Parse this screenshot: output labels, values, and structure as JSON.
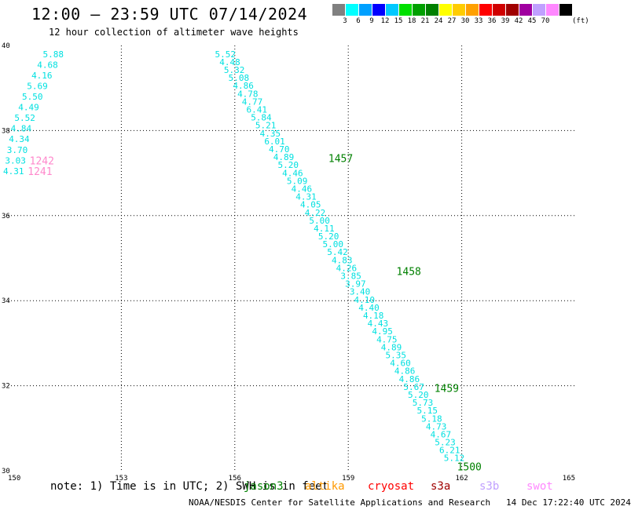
{
  "header": {
    "title": "12:00 – 23:59 UTC 07/14/2024",
    "subtitle": "12 hour collection of altimeter wave heights"
  },
  "legend": {
    "colors": [
      "#808080",
      "#00ffff",
      "#00a0ff",
      "#0000ff",
      "#00c8ff",
      "#00e000",
      "#00a000",
      "#008000",
      "#ffff00",
      "#ffcc00",
      "#ffa000",
      "#ff0000",
      "#d00000",
      "#a00000",
      "#a000a0",
      "#c0a0ff",
      "#ff88ff",
      "#000000"
    ],
    "ticks": [
      "3",
      "6",
      "9",
      "12",
      "15",
      "18",
      "21",
      "24",
      "27",
      "30",
      "33",
      "36",
      "39",
      "42",
      "45",
      "70"
    ],
    "unit": "(ft)"
  },
  "map": {
    "x_ticks": [
      "150",
      "153",
      "156",
      "159",
      "162",
      "165"
    ],
    "y_ticks": [
      "40",
      "38",
      "36",
      "34",
      "32",
      "30"
    ]
  },
  "track_west": {
    "color": "#00e0e0",
    "points": [
      {
        "lon": 151.2,
        "lat": 39.8,
        "h": "5.88"
      },
      {
        "lon": 151.05,
        "lat": 39.55,
        "h": "4.68"
      },
      {
        "lon": 150.9,
        "lat": 39.3,
        "h": "4.16"
      },
      {
        "lon": 150.78,
        "lat": 39.05,
        "h": "5.69"
      },
      {
        "lon": 150.65,
        "lat": 38.8,
        "h": "5.50"
      },
      {
        "lon": 150.55,
        "lat": 38.55,
        "h": "4.49"
      },
      {
        "lon": 150.45,
        "lat": 38.3,
        "h": "5.52"
      },
      {
        "lon": 150.35,
        "lat": 38.05,
        "h": "4.84"
      },
      {
        "lon": 150.3,
        "lat": 37.8,
        "h": "4.34"
      },
      {
        "lon": 150.25,
        "lat": 37.55,
        "h": "3.70"
      },
      {
        "lon": 150.2,
        "lat": 37.3,
        "h": "3.03"
      },
      {
        "lon": 150.15,
        "lat": 37.05,
        "h": "4.31"
      }
    ],
    "times": [
      {
        "lon": 150.9,
        "lat": 37.3,
        "t": "1242",
        "color": "#ff88cc"
      },
      {
        "lon": 150.85,
        "lat": 37.05,
        "t": "1241",
        "color": "#ff88cc"
      }
    ]
  },
  "track_east": {
    "color": "#00e0e0",
    "heights": [
      "5.52",
      "4.48",
      "5.32",
      "5.08",
      "4.86",
      "4.78",
      "4.77",
      "6.41",
      "5.84",
      "5.21",
      "4.35",
      "6.01",
      "4.70",
      "4.89",
      "5.20",
      "4.46",
      "5.09",
      "4.46",
      "4.31",
      "4.05",
      "4.22",
      "5.00",
      "4.11",
      "5.20",
      "5.00",
      "5.42",
      "4.83",
      "4.26",
      "3.85",
      "3.97",
      "3.40",
      "4.10",
      "4.40",
      "4.18",
      "4.43",
      "4.95",
      "4.75",
      "4.89",
      "5.35",
      "4.60",
      "4.86",
      "4.86",
      "5.67",
      "5.20",
      "5.73",
      "5.15",
      "5.18",
      "4.73",
      "4.67",
      "5.23",
      "6.21",
      "5.12"
    ],
    "start": {
      "lon": 155.75,
      "lat": 39.8
    },
    "end": {
      "lon": 161.8,
      "lat": 30.3
    },
    "times": [
      {
        "lon": 158.8,
        "lat": 37.35,
        "t": "1457",
        "color": "#008000"
      },
      {
        "lon": 160.6,
        "lat": 34.7,
        "t": "1458",
        "color": "#008000"
      },
      {
        "lon": 161.6,
        "lat": 31.95,
        "t": "1459",
        "color": "#008000"
      },
      {
        "lon": 162.2,
        "lat": 30.1,
        "t": "1500",
        "color": "#008000"
      }
    ]
  },
  "note": {
    "text": "note: 1) Time is in UTC; 2) SWH is in feet"
  },
  "satellites": [
    {
      "name": "jason3",
      "color": "#008000",
      "left": 310
    },
    {
      "name": "altika",
      "color": "#ff9900",
      "left": 388
    },
    {
      "name": "cryosat",
      "color": "#ff0000",
      "left": 468
    },
    {
      "name": "s3a",
      "color": "#a00000",
      "left": 548
    },
    {
      "name": "s3b",
      "color": "#c0a0ff",
      "left": 610
    },
    {
      "name": "swot",
      "color": "#ff88ff",
      "left": 670
    }
  ],
  "footer": {
    "credit": "NOAA/NESDIS Center for Satellite Applications and Research",
    "timestamp": "14 Dec 17:22:40 UTC 2024"
  }
}
